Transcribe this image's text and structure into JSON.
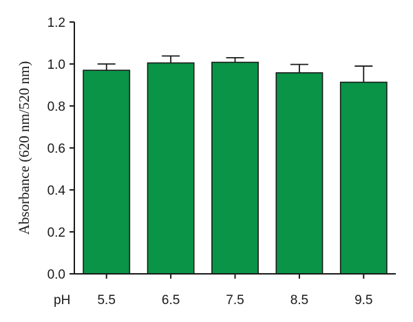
{
  "chart_data": {
    "type": "bar",
    "title": "",
    "xlabel": "pH",
    "ylabel": "Absorbance (620 nm/520 nm)",
    "categories": [
      "5.5",
      "6.5",
      "7.5",
      "8.5",
      "9.5"
    ],
    "values": [
      0.97,
      1.005,
      1.008,
      0.958,
      0.913
    ],
    "errors": [
      0.03,
      0.033,
      0.022,
      0.04,
      0.077
    ],
    "ylim": [
      0.0,
      1.2
    ],
    "yticks": [
      "0.0",
      "0.2",
      "0.4",
      "0.6",
      "0.8",
      "1.0",
      "1.2"
    ],
    "grid": false,
    "colors": {
      "bar_fill": "#0a9447",
      "outline": "#1a1a1a"
    }
  }
}
